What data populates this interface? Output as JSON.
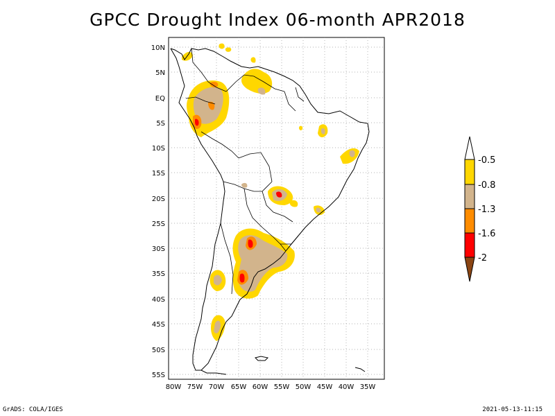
{
  "title": "GPCC Drought Index 06-month APR2018",
  "lat_labels": [
    "10N",
    "5N",
    "EQ",
    "5S",
    "10S",
    "15S",
    "20S",
    "25S",
    "30S",
    "35S",
    "40S",
    "45S",
    "50S",
    "55S"
  ],
  "lon_labels": [
    "80W",
    "75W",
    "70W",
    "65W",
    "60W",
    "55W",
    "50W",
    "45W",
    "40W",
    "35W"
  ],
  "colorbar": {
    "levels": [
      "-0.5",
      "-0.8",
      "-1.3",
      "-1.6",
      "-2"
    ],
    "colors": [
      "#ffffff",
      "#ffd700",
      "#d2b48c",
      "#ff8c00",
      "#ff0000",
      "#8b4513"
    ]
  },
  "footer": {
    "left": "GrADS: COLA/IGES",
    "right": "2021-05-13-11:15"
  }
}
